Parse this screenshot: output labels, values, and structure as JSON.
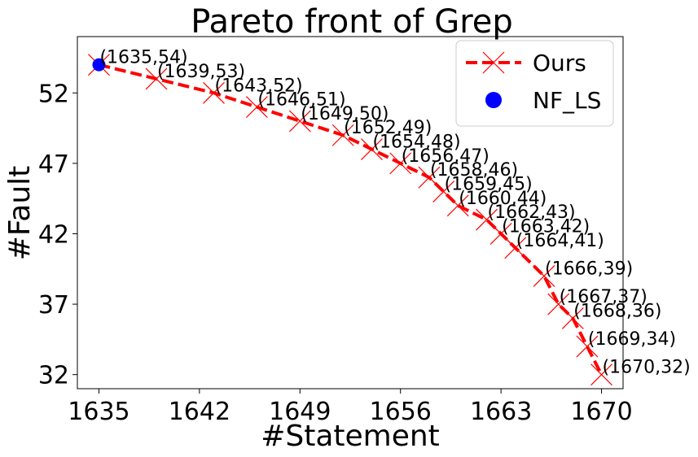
{
  "chart_data": {
    "type": "line",
    "title": "Pareto front of Grep",
    "xlabel": "#Statement",
    "ylabel": "#Fault",
    "xlim": [
      1633.5,
      1671.5
    ],
    "ylim": [
      31,
      56
    ],
    "xticks": [
      1635,
      1642,
      1649,
      1656,
      1663,
      1670
    ],
    "yticks": [
      32,
      37,
      42,
      47,
      52
    ],
    "grid": false,
    "legend_position": "top-right",
    "series": [
      {
        "name": "Ours",
        "color": "#ff0000",
        "style": "dashed",
        "marker": "x",
        "x": [
          1635,
          1639,
          1643,
          1646,
          1649,
          1652,
          1654,
          1656,
          1658,
          1659,
          1660,
          1662,
          1663,
          1664,
          1666,
          1667,
          1668,
          1669,
          1670
        ],
        "y": [
          54,
          53,
          52,
          51,
          50,
          49,
          48,
          47,
          46,
          45,
          44,
          43,
          42,
          41,
          39,
          37,
          36,
          34,
          32
        ],
        "labels": [
          "(1635,54)",
          "(1639,53)",
          "(1643,52)",
          "(1646,51)",
          "(1649,50)",
          "(1652,49)",
          "(1654,48)",
          "(1656,47)",
          "(1658,46)",
          "(1659,45)",
          "(1660,44)",
          "(1662,43)",
          "(1663,42)",
          "(1664,41)",
          "(1666,39)",
          "(1667,37)",
          "(1668,36)",
          "(1669,34)",
          "(1670,32)"
        ]
      },
      {
        "name": "NF_LS",
        "color": "#0000ff",
        "marker": "circle",
        "x": [
          1635
        ],
        "y": [
          54
        ]
      }
    ]
  }
}
